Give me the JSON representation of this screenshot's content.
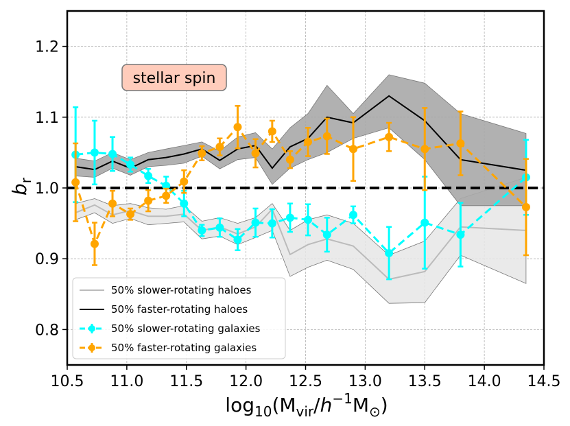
{
  "chart_data": {
    "type": "line",
    "title": "",
    "xlabel": "log10(Mvir/h^-1 M⊙)",
    "ylabel": "b_r",
    "xlim": [
      10.5,
      14.5
    ],
    "ylim": [
      0.75,
      1.25
    ],
    "grid": true,
    "x_ticks": [
      "10.5",
      "11.0",
      "11.5",
      "12.0",
      "12.5",
      "13.0",
      "13.5",
      "14.0",
      "14.5"
    ],
    "y_ticks": [
      "0.8",
      "0.9",
      "1.0",
      "1.1",
      "1.2"
    ],
    "reference_line_y": 1.0,
    "annotation": "stellar spin",
    "legend_position": "lower-left",
    "legend": [
      "50% slower-rotating haloes",
      "50% faster-rotating haloes",
      "50% slower-rotating galaxies",
      "50% faster-rotating galaxies"
    ],
    "colors": {
      "slow_halo_line": "#bbbbbb",
      "slow_halo_band": "#e6e6e6",
      "fast_halo_line": "#000000",
      "fast_halo_band": "#a8a8a8",
      "slow_gal": "#00ffff",
      "fast_gal": "#ffa500",
      "annotation_fill": "#ffccbb",
      "annotation_edge": "#777777"
    },
    "halo_x": [
      10.57,
      10.73,
      10.88,
      11.03,
      11.18,
      11.33,
      11.48,
      11.63,
      11.78,
      11.93,
      12.08,
      12.22,
      12.37,
      12.52,
      12.68,
      12.9,
      13.2,
      13.5,
      13.8,
      14.35
    ],
    "slow_haloes": {
      "name": "50% slower-rotating haloes",
      "values": [
        0.965,
        0.976,
        0.962,
        0.968,
        0.96,
        0.96,
        0.963,
        0.94,
        0.945,
        0.935,
        0.945,
        0.97,
        0.906,
        0.92,
        0.928,
        0.918,
        0.871,
        0.882,
        0.945,
        0.94
      ],
      "band_lower": [
        0.955,
        0.965,
        0.95,
        0.957,
        0.948,
        0.95,
        0.952,
        0.928,
        0.932,
        0.92,
        0.93,
        0.94,
        0.875,
        0.888,
        0.898,
        0.885,
        0.837,
        0.838,
        0.905,
        0.865
      ],
      "band_upper": [
        0.978,
        0.985,
        0.975,
        0.978,
        0.972,
        0.97,
        0.975,
        0.953,
        0.958,
        0.95,
        0.958,
        0.978,
        0.94,
        0.955,
        0.962,
        0.95,
        0.905,
        0.925,
        0.985,
        1.015
      ]
    },
    "fast_haloes": {
      "name": "50% faster-rotating haloes",
      "values": [
        1.03,
        1.026,
        1.038,
        1.028,
        1.04,
        1.043,
        1.048,
        1.055,
        1.039,
        1.055,
        1.06,
        1.028,
        1.058,
        1.07,
        1.1,
        1.092,
        1.13,
        1.095,
        1.04,
        1.025
      ],
      "band_lower": [
        1.017,
        1.015,
        1.028,
        1.018,
        1.03,
        1.032,
        1.035,
        1.045,
        1.027,
        1.04,
        1.043,
        1.005,
        1.028,
        1.04,
        1.05,
        1.07,
        1.085,
        1.04,
        0.975,
        0.975
      ],
      "band_upper": [
        1.042,
        1.038,
        1.05,
        1.04,
        1.05,
        1.055,
        1.06,
        1.065,
        1.052,
        1.072,
        1.078,
        1.055,
        1.085,
        1.105,
        1.145,
        1.105,
        1.16,
        1.148,
        1.105,
        1.077
      ]
    },
    "slow_galaxies": {
      "name": "50% slower-rotating galaxies",
      "x": [
        10.57,
        10.73,
        10.88,
        11.03,
        11.18,
        11.33,
        11.48,
        11.63,
        11.78,
        11.93,
        12.08,
        12.22,
        12.37,
        12.52,
        12.68,
        12.9,
        13.2,
        13.5,
        13.8,
        14.35
      ],
      "values": [
        1.047,
        1.05,
        1.048,
        1.033,
        1.017,
        1.003,
        0.978,
        0.94,
        0.944,
        0.927,
        0.951,
        0.95,
        0.958,
        0.955,
        0.934,
        0.962,
        0.908,
        0.951,
        0.934,
        1.015
      ],
      "err": [
        0.067,
        0.045,
        0.024,
        0.01,
        0.01,
        0.013,
        0.018,
        0.008,
        0.013,
        0.015,
        0.02,
        0.02,
        0.02,
        0.022,
        0.024,
        0.012,
        0.037,
        0.065,
        0.045,
        0.053
      ]
    },
    "fast_galaxies": {
      "name": "50% faster-rotating galaxies",
      "x": [
        10.57,
        10.73,
        10.88,
        11.03,
        11.18,
        11.33,
        11.48,
        11.63,
        11.78,
        11.93,
        12.08,
        12.22,
        12.37,
        12.52,
        12.68,
        12.9,
        13.2,
        13.5,
        13.8,
        14.35
      ],
      "values": [
        1.008,
        0.921,
        0.978,
        0.963,
        0.982,
        0.989,
        1.009,
        1.049,
        1.058,
        1.086,
        1.049,
        1.08,
        1.04,
        1.065,
        1.073,
        1.055,
        1.072,
        1.055,
        1.063,
        0.973
      ],
      "err": [
        0.055,
        0.03,
        0.018,
        0.008,
        0.015,
        0.01,
        0.016,
        0.01,
        0.012,
        0.03,
        0.02,
        0.015,
        0.012,
        0.02,
        0.025,
        0.045,
        0.02,
        0.058,
        0.045,
        0.068
      ]
    }
  }
}
